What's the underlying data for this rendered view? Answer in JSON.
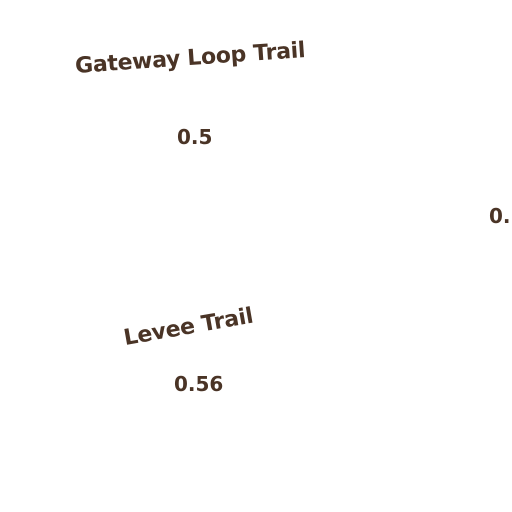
{
  "colors": {
    "background": "#ffffff",
    "label_text": "#4a3426"
  },
  "trails": [
    {
      "name": "Gateway Loop Trail",
      "distance": "0.5"
    },
    {
      "name": "Levee Trail",
      "distance": "0.56"
    }
  ],
  "partial_labels": [
    {
      "distance": "0."
    }
  ]
}
